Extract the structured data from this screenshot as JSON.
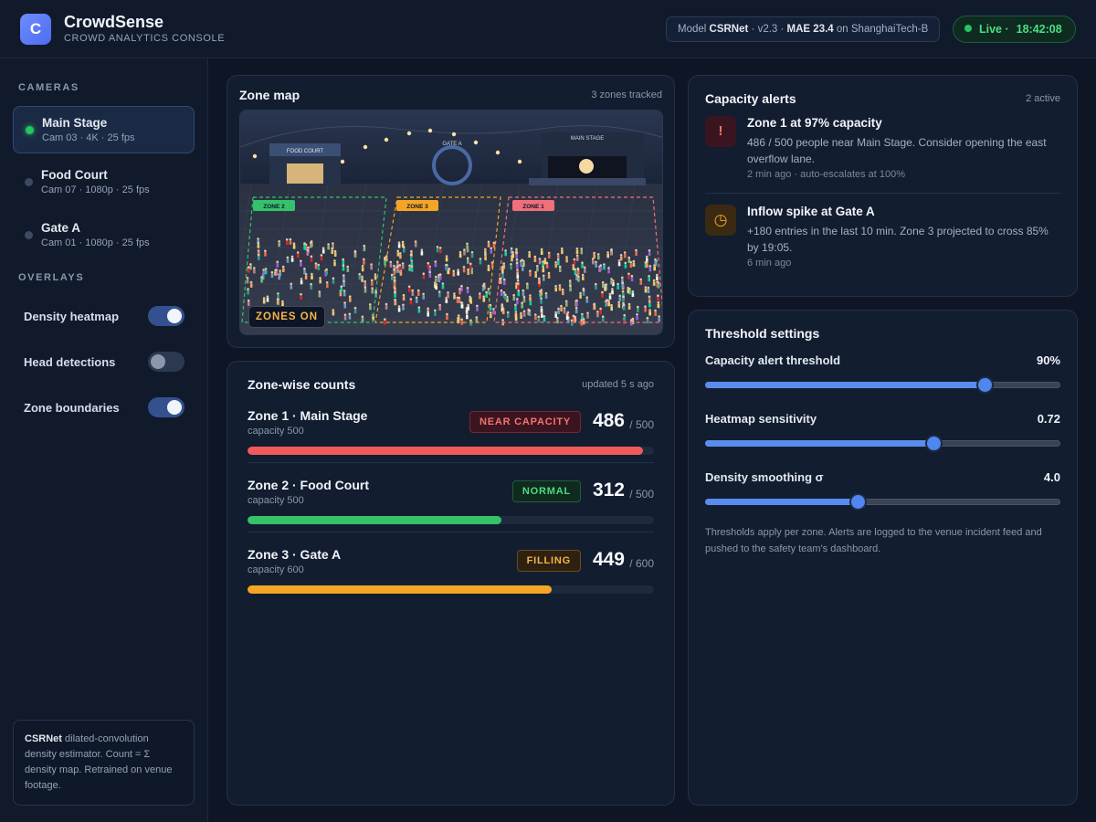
{
  "header": {
    "logo_letter": "C",
    "title": "CrowdSense",
    "subtitle": "CROWD ANALYTICS CONSOLE",
    "model": {
      "prefix": "Model",
      "name": "CSRNet",
      "version": "· v2.3 ·",
      "mae": "MAE 23.4",
      "suffix": "on ShanghaiTech-B"
    },
    "live": {
      "label": "Live ·",
      "time": "18:42:08"
    }
  },
  "sidebar": {
    "cameras_heading": "CAMERAS",
    "cameras": [
      {
        "name": "Main Stage",
        "meta": "Cam 03 · 4K · 25 fps",
        "active": true
      },
      {
        "name": "Food Court",
        "meta": "Cam 07 · 1080p · 25 fps",
        "active": false
      },
      {
        "name": "Gate A",
        "meta": "Cam 01 · 1080p · 25 fps",
        "active": false
      }
    ],
    "overlays_heading": "OVERLAYS",
    "overlays": [
      {
        "label": "Density heatmap",
        "on": true
      },
      {
        "label": "Head detections",
        "on": false
      },
      {
        "label": "Zone boundaries",
        "on": true
      }
    ],
    "note_bold": "CSRNet",
    "note_text": " dilated-convolution density estimator. Count = Σ density map. Retrained on venue footage."
  },
  "zone_map": {
    "title": "Zone map",
    "meta": "3 zones tracked",
    "signs": {
      "food_court": "FOOD COURT",
      "gate": "GATE A",
      "stage": "MAIN STAGE"
    },
    "zone_tags": {
      "zone1": "ZONE 1",
      "zone2": "ZONE 2",
      "zone3": "ZONE 3"
    },
    "zones_button": "ZONES ON"
  },
  "zone_counts": {
    "title": "Zone-wise counts",
    "meta": "updated 5 s ago",
    "zones": [
      {
        "name": "Zone 1 · Main Stage",
        "capacity_text": "capacity 500",
        "badge": "NEAR CAPACITY",
        "count": "486",
        "cap_small": "/ 500",
        "fill": 0.972,
        "color": "#f05a5a",
        "badge_fg": "#f87171",
        "badge_bg": "#3a1520",
        "badge_border": "#7a2532"
      },
      {
        "name": "Zone 2 · Food Court",
        "capacity_text": "capacity 500",
        "badge": "NORMAL",
        "count": "312",
        "cap_small": "/ 500",
        "fill": 0.624,
        "color": "#34c36b",
        "badge_fg": "#4ade80",
        "badge_bg": "#0f2a1f",
        "badge_border": "#1f5d3c"
      },
      {
        "name": "Zone 3 · Gate A",
        "capacity_text": "capacity 600",
        "badge": "FILLING",
        "count": "449",
        "cap_small": "/ 600",
        "fill": 0.748,
        "color": "#f5a524",
        "badge_fg": "#f5b547",
        "badge_bg": "#2e2112",
        "badge_border": "#6b4a1c"
      }
    ]
  },
  "alerts": {
    "title": "Capacity alerts",
    "meta": "2 active",
    "items": [
      {
        "icon": "!",
        "title": "Zone 1 at 97% capacity",
        "body": "486 / 500 people near Main Stage. Consider opening the east overflow lane.",
        "time": "2 min ago · auto-escalates at 100%"
      },
      {
        "icon": "◷",
        "title": "Inflow spike at Gate A",
        "body": "+180 entries in the last 10 min. Zone 3 projected to cross 85% by 19:05.",
        "time": "6 min ago"
      }
    ]
  },
  "thresholds": {
    "title": "Threshold settings",
    "items": [
      {
        "label": "Capacity alert threshold",
        "value": "90%",
        "fraction": 0.787
      },
      {
        "label": "Heatmap sensitivity",
        "value": "0.72",
        "fraction": 0.642
      },
      {
        "label": "Density smoothing σ",
        "value": "4.0",
        "fraction": 0.429
      }
    ],
    "note": "Thresholds apply per zone. Alerts are logged to the venue incident feed and pushed to the safety team's dashboard."
  }
}
